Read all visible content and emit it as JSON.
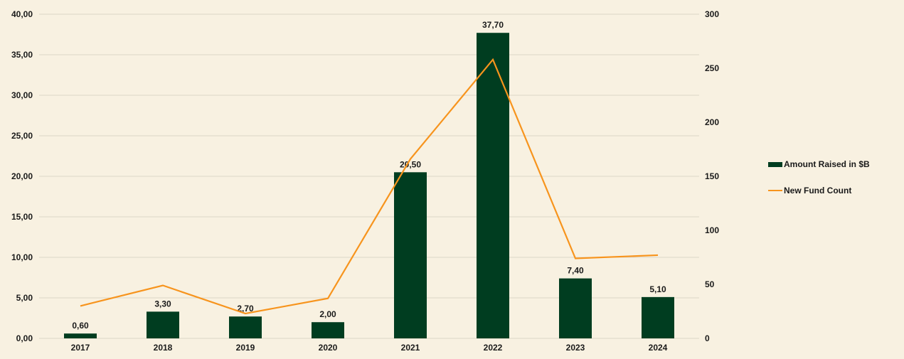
{
  "chart_data": {
    "type": "bar",
    "categories": [
      "2017",
      "2018",
      "2019",
      "2020",
      "2021",
      "2022",
      "2023",
      "2024"
    ],
    "series": [
      {
        "name": "Amount Raised in $B",
        "type": "bar",
        "axis": "left",
        "color": "#003d20",
        "values": [
          0.6,
          3.3,
          2.7,
          2.0,
          20.5,
          37.7,
          7.4,
          5.1
        ],
        "labels": [
          "0,60",
          "3,30",
          "2,70",
          "2,00",
          "20,50",
          "37,70",
          "7,40",
          "5,10"
        ]
      },
      {
        "name": "New Fund Count",
        "type": "line",
        "axis": "right",
        "color": "#f7941d",
        "values": [
          30,
          49,
          23,
          37,
          166,
          258,
          74,
          77
        ]
      }
    ],
    "y_left": {
      "min": 0,
      "max": 40,
      "ticks": [
        0,
        5,
        10,
        15,
        20,
        25,
        30,
        35,
        40
      ],
      "tick_labels": [
        "0,00",
        "5,00",
        "10,00",
        "15,00",
        "20,00",
        "25,00",
        "30,00",
        "35,00",
        "40,00"
      ]
    },
    "y_right": {
      "min": 0,
      "max": 300,
      "ticks": [
        0,
        50,
        100,
        150,
        200,
        250,
        300
      ],
      "tick_labels": [
        "0",
        "50",
        "100",
        "150",
        "200",
        "250",
        "300"
      ]
    },
    "grid": true,
    "legend": "right",
    "background": "#f8f1e1",
    "gridline_color": "#dcd6c8"
  }
}
